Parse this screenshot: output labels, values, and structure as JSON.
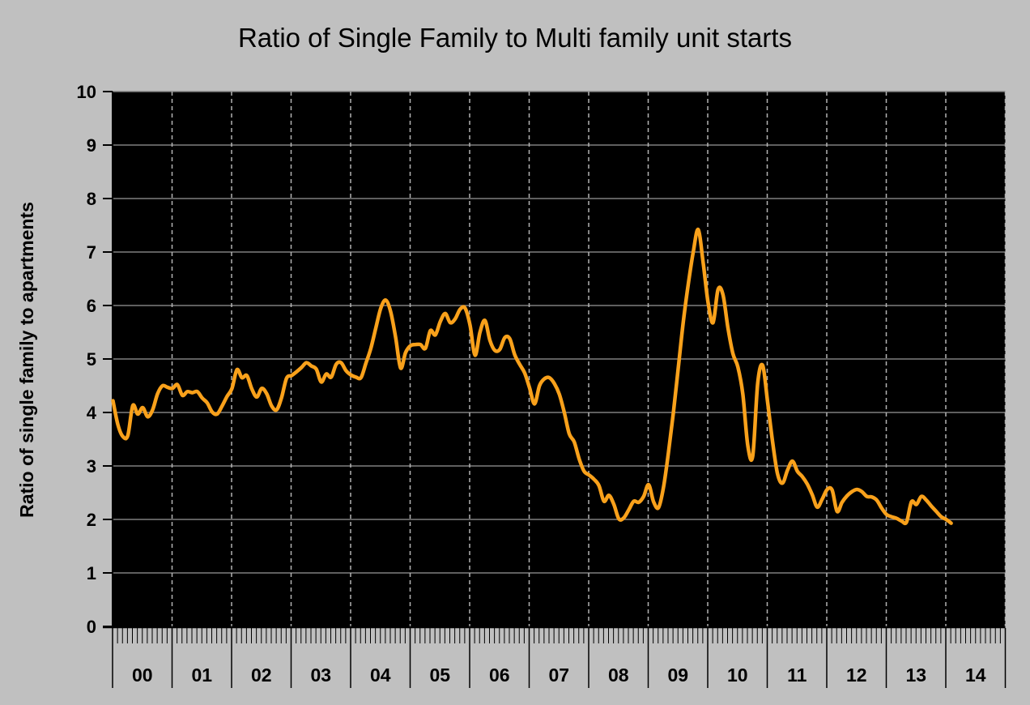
{
  "title": "Ratio of Single Family to Multi family unit starts",
  "chart_data": {
    "type": "line",
    "title": "Ratio of Single Family to Multi family unit starts",
    "xlabel": "",
    "ylabel": "Ratio of single family to apartments",
    "ylim": [
      0,
      10
    ],
    "yticks": [
      0,
      1,
      2,
      3,
      4,
      5,
      6,
      7,
      8,
      9,
      10
    ],
    "categories": [
      "00",
      "01",
      "02",
      "03",
      "04",
      "05",
      "06",
      "07",
      "08",
      "09",
      "10",
      "11",
      "12",
      "13",
      "14"
    ],
    "x_start_month": "2000-01",
    "x_end_month": "2014-02",
    "points_per_year": 12,
    "grid": {
      "horizontal": "solid",
      "vertical": "dashed-at-year-boundaries"
    },
    "legend_position": "none",
    "series": [
      {
        "name": "Ratio of single family to apartments",
        "values": [
          4.22,
          3.77,
          3.55,
          3.57,
          4.13,
          3.97,
          4.09,
          3.92,
          4.05,
          4.35,
          4.5,
          4.47,
          4.45,
          4.52,
          4.32,
          4.39,
          4.37,
          4.39,
          4.27,
          4.18,
          4.01,
          3.97,
          4.12,
          4.3,
          4.45,
          4.8,
          4.65,
          4.69,
          4.44,
          4.29,
          4.45,
          4.35,
          4.12,
          4.05,
          4.28,
          4.64,
          4.69,
          4.76,
          4.84,
          4.93,
          4.87,
          4.81,
          4.57,
          4.72,
          4.66,
          4.9,
          4.93,
          4.78,
          4.7,
          4.66,
          4.65,
          4.92,
          5.2,
          5.58,
          5.95,
          6.1,
          5.88,
          5.4,
          4.83,
          5.12,
          5.25,
          5.27,
          5.27,
          5.2,
          5.53,
          5.45,
          5.7,
          5.85,
          5.68,
          5.75,
          5.93,
          5.95,
          5.63,
          5.07,
          5.5,
          5.72,
          5.35,
          5.16,
          5.18,
          5.4,
          5.38,
          5.08,
          4.9,
          4.74,
          4.46,
          4.16,
          4.5,
          4.63,
          4.65,
          4.54,
          4.34,
          4.0,
          3.6,
          3.45,
          3.13,
          2.9,
          2.83,
          2.75,
          2.63,
          2.34,
          2.45,
          2.28,
          2.01,
          2.03,
          2.18,
          2.34,
          2.32,
          2.43,
          2.65,
          2.33,
          2.22,
          2.6,
          3.25,
          4.0,
          4.85,
          5.7,
          6.4,
          7.0,
          7.42,
          6.8,
          6.05,
          5.68,
          6.3,
          6.2,
          5.58,
          5.1,
          4.85,
          4.34,
          3.38,
          3.19,
          4.55,
          4.88,
          4.19,
          3.45,
          2.85,
          2.68,
          2.92,
          3.09,
          2.9,
          2.8,
          2.66,
          2.46,
          2.23,
          2.38,
          2.56,
          2.55,
          2.15,
          2.32,
          2.44,
          2.52,
          2.56,
          2.52,
          2.43,
          2.42,
          2.36,
          2.21,
          2.09,
          2.05,
          2.02,
          1.97,
          1.95,
          2.33,
          2.28,
          2.43,
          2.36,
          2.25,
          2.15,
          2.05,
          2.0,
          1.93
        ]
      }
    ],
    "colors": {
      "background": "#c0c0c0",
      "plot_background": "#000000",
      "line": "#F9A11B",
      "h_grid": "#7f7f7f",
      "v_grid": "#b3b3b3",
      "axis": "#000000",
      "text": "#000000"
    }
  }
}
